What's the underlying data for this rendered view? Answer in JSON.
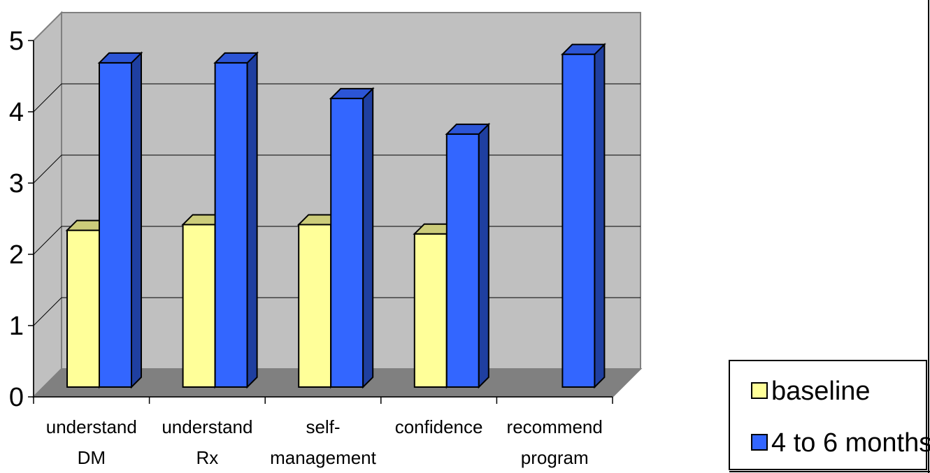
{
  "chart_data": {
    "type": "bar",
    "view": "3d-clustered-column",
    "title": "",
    "xlabel": "",
    "ylabel": "",
    "ylim": [
      0,
      5
    ],
    "yticks": [
      "0",
      "1",
      "2",
      "3",
      "4",
      "5"
    ],
    "grid": true,
    "legend_position": "right-bottom",
    "categories": [
      [
        "understand",
        "DM"
      ],
      [
        "understand",
        "Rx"
      ],
      [
        "self-",
        "management"
      ],
      [
        "confidence"
      ],
      [
        "recommend",
        "program"
      ]
    ],
    "series": [
      {
        "name": "baseline",
        "values": [
          2.2,
          2.28,
          2.28,
          2.15,
          null
        ],
        "color": "#FFFF99",
        "top_color": "#CCCC7A",
        "side_color": "#999966"
      },
      {
        "name": "4 to 6 months",
        "values": [
          4.55,
          4.55,
          4.05,
          3.55,
          4.67
        ],
        "color": "#3366FF",
        "top_color": "#2C55D6",
        "side_color": "#1F3FA0"
      }
    ],
    "colors": {
      "wall": "#C0C0C0",
      "floor": "#808080",
      "gridline": "#000000",
      "background": "#FFFFFF"
    }
  }
}
